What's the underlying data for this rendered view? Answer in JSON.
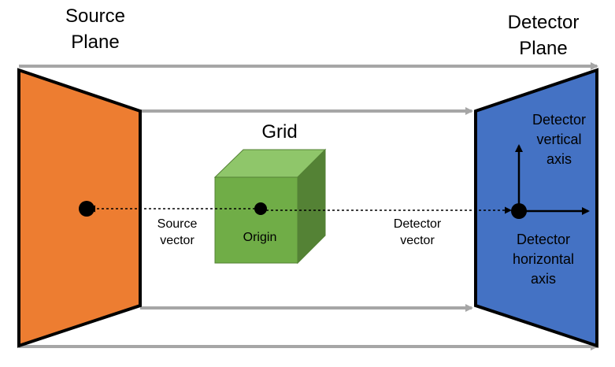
{
  "labels": {
    "source_plane_line1": "Source",
    "source_plane_line2": "Plane",
    "detector_plane_line1": "Detector",
    "detector_plane_line2": "Plane",
    "grid": "Grid",
    "origin": "Origin",
    "source_vector_line1": "Source",
    "source_vector_line2": "vector",
    "detector_vector_line1": "Detector",
    "detector_vector_line2": "vector",
    "detector_vertical_line1": "Detector",
    "detector_vertical_line2": "vertical",
    "detector_vertical_line3": "axis",
    "detector_horizontal_line1": "Detector",
    "detector_horizontal_line2": "horizontal",
    "detector_horizontal_line3": "axis"
  },
  "colors": {
    "source_plane": "#ed7d31",
    "detector_plane": "#4472c4",
    "cube_front": "#70ad47",
    "cube_top": "#8fc66a",
    "cube_side": "#548235",
    "guide_arrow": "#a6a6a6",
    "outline": "#000000"
  }
}
